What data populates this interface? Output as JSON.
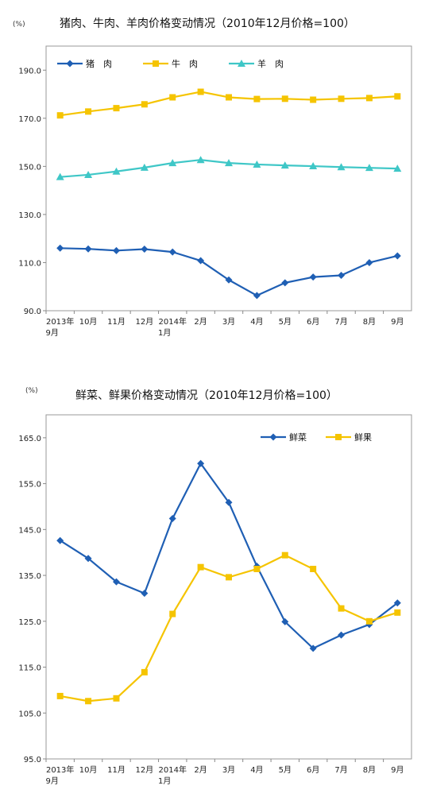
{
  "chart_data": [
    {
      "type": "line",
      "title": "猪肉、牛肉、羊肉价格变动情况（2010年12月价格=100）",
      "unit": "(%)",
      "ylim": [
        90,
        200
      ],
      "yticks": [
        "90.0",
        "110.0",
        "130.0",
        "150.0",
        "170.0",
        "190.0"
      ],
      "categories": [
        [
          "2013年",
          "9月"
        ],
        [
          "10月"
        ],
        [
          "11月"
        ],
        [
          "12月"
        ],
        [
          "2014年",
          "1月"
        ],
        [
          "2月"
        ],
        [
          "3月"
        ],
        [
          "4月"
        ],
        [
          "5月"
        ],
        [
          "6月"
        ],
        [
          "7月"
        ],
        [
          "8月"
        ],
        [
          "9月"
        ]
      ],
      "legend_position": "top-left",
      "series": [
        {
          "name": "猪　肉",
          "color": "#1f5fb4",
          "marker": "diamond",
          "values": [
            116.0,
            115.7,
            115.0,
            115.6,
            114.4,
            110.8,
            102.8,
            96.3,
            101.6,
            104.0,
            104.7,
            110.0,
            112.8
          ]
        },
        {
          "name": "牛　肉",
          "color": "#f5c400",
          "marker": "square",
          "values": [
            171.2,
            172.8,
            174.2,
            175.8,
            178.7,
            181.0,
            178.7,
            178.0,
            178.1,
            177.7,
            178.1,
            178.4,
            179.1
          ]
        },
        {
          "name": "羊　肉",
          "color": "#3fc7c7",
          "marker": "triangle",
          "values": [
            145.6,
            146.5,
            147.9,
            149.5,
            151.4,
            152.7,
            151.4,
            150.8,
            150.4,
            150.1,
            149.7,
            149.4,
            149.1
          ]
        }
      ]
    },
    {
      "type": "line",
      "title": "鲜菜、鲜果价格变动情况（2010年12月价格=100）",
      "unit": "(%)",
      "ylim": [
        95,
        170
      ],
      "yticks": [
        "95.0",
        "105.0",
        "115.0",
        "125.0",
        "135.0",
        "145.0",
        "155.0",
        "165.0"
      ],
      "categories": [
        [
          "2013年",
          "9月"
        ],
        [
          "10月"
        ],
        [
          "11月"
        ],
        [
          "12月"
        ],
        [
          "2014年",
          "1月"
        ],
        [
          "2月"
        ],
        [
          "3月"
        ],
        [
          "4月"
        ],
        [
          "5月"
        ],
        [
          "6月"
        ],
        [
          "7月"
        ],
        [
          "8月"
        ],
        [
          "9月"
        ]
      ],
      "legend_position": "top-right",
      "series": [
        {
          "name": "鲜菜",
          "color": "#1f5fb4",
          "marker": "diamond",
          "values": [
            142.6,
            138.7,
            133.6,
            131.1,
            147.4,
            159.4,
            150.9,
            137.0,
            124.9,
            119.1,
            122.0,
            124.3,
            129.0
          ]
        },
        {
          "name": "鲜果",
          "color": "#f5c400",
          "marker": "square",
          "values": [
            108.7,
            107.6,
            108.2,
            113.9,
            126.6,
            136.8,
            134.6,
            136.4,
            139.4,
            136.4,
            127.8,
            125.0,
            126.9
          ]
        }
      ]
    }
  ]
}
